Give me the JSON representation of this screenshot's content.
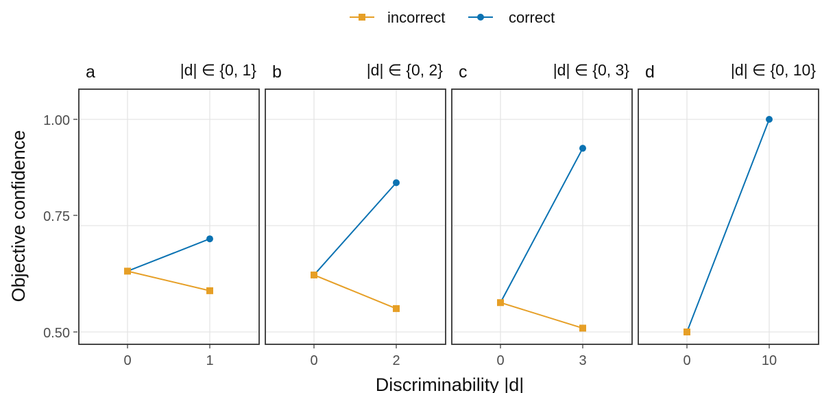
{
  "legend": {
    "position": "top",
    "items": [
      {
        "label": "incorrect",
        "color": "#E69F26",
        "marker": "square"
      },
      {
        "label": "correct",
        "color": "#0A72B2",
        "marker": "circle"
      }
    ]
  },
  "chart_data": {
    "type": "line",
    "ylabel": "Objective confidence",
    "xlabel": "Discriminability |d|",
    "ylim": [
      0.5,
      1.0
    ],
    "yticks": [
      "0.50",
      "0.75",
      "1.00"
    ],
    "grid": true,
    "panels": [
      {
        "tag": "a",
        "title": "|d| ∈ {0, 1}",
        "xticks": [
          "0",
          "1"
        ],
        "series": [
          {
            "name": "incorrect",
            "points": [
              [
                0,
                0.643
              ],
              [
                1,
                0.597
              ]
            ]
          },
          {
            "name": "correct",
            "points": [
              [
                0,
                0.643
              ],
              [
                1,
                0.719
              ]
            ]
          }
        ]
      },
      {
        "tag": "b",
        "title": "|d| ∈ {0, 2}",
        "xticks": [
          "0",
          "2"
        ],
        "series": [
          {
            "name": "incorrect",
            "points": [
              [
                0,
                0.634
              ],
              [
                2,
                0.555
              ]
            ]
          },
          {
            "name": "correct",
            "points": [
              [
                0,
                0.634
              ],
              [
                2,
                0.851
              ]
            ]
          }
        ]
      },
      {
        "tag": "c",
        "title": "|d| ∈ {0, 3}",
        "xticks": [
          "0",
          "3"
        ],
        "series": [
          {
            "name": "incorrect",
            "points": [
              [
                0,
                0.569
              ],
              [
                3,
                0.509
              ]
            ]
          },
          {
            "name": "correct",
            "points": [
              [
                0,
                0.569
              ],
              [
                3,
                0.932
              ]
            ]
          }
        ]
      },
      {
        "tag": "d",
        "title": "|d| ∈ {0, 10}",
        "xticks": [
          "0",
          "10"
        ],
        "series": [
          {
            "name": "incorrect",
            "points": [
              [
                0,
                0.5
              ]
            ]
          },
          {
            "name": "correct",
            "points": [
              [
                0,
                0.5
              ],
              [
                10,
                1.0
              ]
            ]
          }
        ]
      }
    ]
  }
}
